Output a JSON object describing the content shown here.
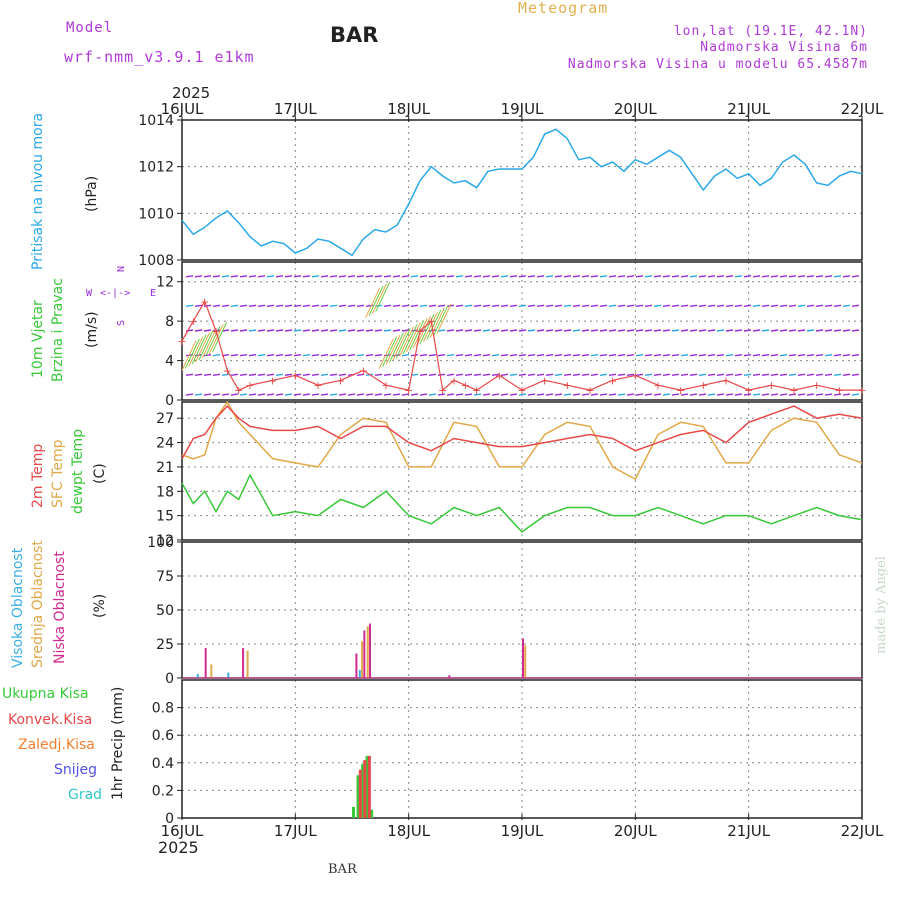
{
  "header": {
    "model_label": "Model",
    "model_name": "wrf-nmm_v3.9.1 e1km",
    "station": "BAR",
    "title": "Meteogram",
    "lonlat": "lon,lat (19.1E, 42.1N)",
    "elevation": "Nadmorska Visina 6m",
    "model_elevation": "Nadmorska Visina u modelu 65.4587m",
    "year": "2025"
  },
  "footer": {
    "station": "BAR",
    "credit": "made by Angel"
  },
  "colors": {
    "pressure": "#2aa8e8",
    "temp2m": "#e84848",
    "sfc": "#e0a848",
    "dewpt": "#38c838",
    "high_cloud": "#3ab0e8",
    "mid_cloud": "#e0a848",
    "low_cloud": "#d02a90",
    "rain_total": "#38c838",
    "rain_conv": "#e84848",
    "freezing": "#f08030",
    "snow": "#5050e0",
    "hail": "#30c8c8",
    "wind_purple": "#9a2ad8"
  },
  "chart_data": [
    {
      "type": "line",
      "name": "pressure",
      "ylabel": "(hPa)",
      "side_label": "Pritisak na nivou mora",
      "x_ticks": [
        "16JUL",
        "17JUL",
        "18JUL",
        "19JUL",
        "20JUL",
        "21JUL",
        "22JUL"
      ],
      "ylim": [
        1008,
        1014
      ],
      "y_ticks": [
        1008,
        1010,
        1012,
        1014
      ],
      "grid": true,
      "series": [
        {
          "x": [
            0,
            0.1,
            0.2,
            0.3,
            0.4,
            0.5,
            0.6,
            0.7,
            0.8,
            0.9,
            1.0,
            1.1,
            1.2,
            1.3,
            1.4,
            1.5,
            1.6,
            1.7,
            1.8,
            1.9,
            2.0,
            2.1,
            2.2,
            2.3,
            2.4,
            2.5,
            2.6,
            2.7,
            2.8,
            2.9,
            3.0,
            3.1,
            3.2,
            3.3,
            3.4,
            3.5,
            3.6,
            3.7,
            3.8,
            3.9,
            4.0,
            4.1,
            4.2,
            4.3,
            4.4,
            4.5,
            4.6,
            4.7,
            4.8,
            4.9,
            5.0,
            5.1,
            5.2,
            5.3,
            5.4,
            5.5,
            5.6,
            5.7,
            5.8,
            5.9,
            6.0
          ],
          "values": [
            1009.7,
            1009.1,
            1009.4,
            1009.8,
            1010.1,
            1009.6,
            1009.0,
            1008.6,
            1008.8,
            1008.7,
            1008.3,
            1008.5,
            1008.9,
            1008.8,
            1008.5,
            1008.2,
            1008.9,
            1009.3,
            1009.2,
            1009.5,
            1010.4,
            1011.4,
            1012.0,
            1011.6,
            1011.3,
            1011.4,
            1011.1,
            1011.8,
            1011.9,
            1011.9,
            1011.9,
            1012.4,
            1013.4,
            1013.6,
            1013.2,
            1012.3,
            1012.4,
            1012.0,
            1012.2,
            1011.8,
            1012.3,
            1012.1,
            1012.4,
            1012.7,
            1012.4,
            1011.7,
            1011.0,
            1011.6,
            1011.9,
            1011.5,
            1011.7,
            1011.2,
            1011.5,
            1012.2,
            1012.5,
            1012.1,
            1011.3,
            1011.2,
            1011.6,
            1011.8,
            1011.7
          ]
        }
      ]
    },
    {
      "type": "line",
      "name": "wind",
      "ylabel": "(m/s)",
      "side_label_1": "10m Vjetar",
      "side_label_2": "Brzina i Pravac",
      "compass": [
        "N",
        "W",
        "E",
        "S"
      ],
      "ylim": [
        0,
        14
      ],
      "y_ticks": [
        0,
        4,
        8,
        12
      ],
      "series": [
        {
          "name": "speed",
          "x": [
            0,
            0.1,
            0.2,
            0.3,
            0.4,
            0.5,
            0.6,
            0.8,
            1.0,
            1.2,
            1.4,
            1.6,
            1.8,
            2.0,
            2.1,
            2.2,
            2.3,
            2.4,
            2.5,
            2.6,
            2.8,
            3.0,
            3.2,
            3.4,
            3.6,
            3.8,
            4.0,
            4.2,
            4.4,
            4.6,
            4.8,
            5.0,
            5.2,
            5.4,
            5.6,
            5.8,
            6.0
          ],
          "values": [
            6,
            8,
            10,
            7,
            3,
            1,
            1.5,
            2,
            2.5,
            1.5,
            2,
            3,
            1.5,
            1,
            7,
            8,
            1,
            2,
            1.5,
            1,
            2.5,
            1,
            2,
            1.5,
            1,
            2,
            2.5,
            1.5,
            1,
            1.5,
            2,
            1,
            1.5,
            1,
            1.5,
            1,
            1
          ]
        }
      ]
    },
    {
      "type": "line",
      "name": "temperature",
      "ylabel": "(C)",
      "side_label_1": "2m Temp",
      "side_label_2": "SFC Temp",
      "side_label_3": "dewpt Temp",
      "ylim": [
        12,
        29
      ],
      "y_ticks": [
        12,
        15,
        18,
        21,
        24,
        27
      ],
      "grid": true,
      "series": [
        {
          "name": "2m Temp",
          "x": [
            0,
            0.1,
            0.2,
            0.3,
            0.4,
            0.5,
            0.6,
            0.8,
            1.0,
            1.2,
            1.4,
            1.6,
            1.8,
            2.0,
            2.2,
            2.4,
            2.6,
            2.8,
            3.0,
            3.2,
            3.4,
            3.6,
            3.8,
            4.0,
            4.2,
            4.4,
            4.6,
            4.8,
            5.0,
            5.2,
            5.4,
            5.6,
            5.8,
            6.0
          ],
          "values": [
            22,
            24.5,
            25,
            27,
            28.5,
            27,
            26,
            25.5,
            25.5,
            26,
            24.5,
            26,
            26,
            24,
            23,
            24.5,
            24,
            23.5,
            23.5,
            24,
            24.5,
            25,
            24.5,
            23,
            24,
            25,
            25.5,
            24,
            26.5,
            27.5,
            28.5,
            27,
            27.5,
            27
          ]
        },
        {
          "name": "SFC Temp",
          "x": [
            0,
            0.1,
            0.2,
            0.3,
            0.4,
            0.5,
            0.6,
            0.8,
            1.0,
            1.2,
            1.4,
            1.6,
            1.8,
            2.0,
            2.2,
            2.4,
            2.6,
            2.8,
            3.0,
            3.2,
            3.4,
            3.6,
            3.8,
            4.0,
            4.2,
            4.4,
            4.6,
            4.8,
            5.0,
            5.2,
            5.4,
            5.6,
            5.8,
            6.0
          ],
          "values": [
            22.5,
            22,
            22.5,
            27,
            29,
            26.5,
            25,
            22,
            21.5,
            21,
            25,
            27,
            26.5,
            21,
            21,
            26.5,
            26,
            21,
            21,
            25,
            26.5,
            26,
            21,
            19.5,
            25,
            26.5,
            26,
            21.5,
            21.5,
            25.5,
            27,
            26.5,
            22.5,
            21.5
          ]
        },
        {
          "name": "dewpt Temp",
          "x": [
            0,
            0.1,
            0.2,
            0.3,
            0.4,
            0.5,
            0.6,
            0.8,
            1.0,
            1.2,
            1.4,
            1.6,
            1.8,
            2.0,
            2.2,
            2.4,
            2.6,
            2.8,
            3.0,
            3.2,
            3.4,
            3.6,
            3.8,
            4.0,
            4.2,
            4.4,
            4.6,
            4.8,
            5.0,
            5.2,
            5.4,
            5.6,
            5.8,
            6.0
          ],
          "values": [
            19,
            16.5,
            18,
            15.5,
            18,
            17,
            20,
            15,
            15.5,
            15,
            17,
            16,
            18,
            15,
            14,
            16,
            15,
            16,
            13,
            15,
            16,
            16,
            15,
            15,
            16,
            15,
            14,
            15,
            15,
            14,
            15,
            16,
            15,
            14.5
          ]
        }
      ]
    },
    {
      "type": "bar",
      "name": "cloud",
      "ylabel": "(%)",
      "side_label_1": "Visoka Oblacnost",
      "side_label_2": "Srednja Oblacnost",
      "side_label_3": "Niska Oblacnost",
      "ylim": [
        0,
        100
      ],
      "y_ticks": [
        0,
        25,
        50,
        75,
        100
      ],
      "grid": true,
      "series": [
        {
          "name": "Niska Oblacnost",
          "x": [
            0.2,
            0.53,
            1.53,
            1.6,
            1.65,
            2.35,
            3.0
          ],
          "values": [
            22,
            22,
            18,
            35,
            40,
            2,
            29
          ]
        },
        {
          "name": "Srednja Oblacnost",
          "x": [
            0.25,
            0.57,
            1.58,
            1.63,
            3.02
          ],
          "values": [
            10,
            20,
            27,
            38,
            24
          ]
        },
        {
          "name": "Visoka Oblacnost",
          "x": [
            0.13,
            0.4,
            1.56
          ],
          "values": [
            3,
            4,
            6
          ]
        }
      ]
    },
    {
      "type": "bar",
      "name": "precip",
      "ylabel": "1hr Precip (mm)",
      "legend": [
        "Ukupna Kisa",
        "Konvek.Kisa",
        "Zaledj.Kisa",
        "Snijeg",
        "Grad"
      ],
      "ylim": [
        0,
        1
      ],
      "y_ticks": [
        0,
        0.2,
        0.4,
        0.6,
        0.8
      ],
      "grid": true,
      "series": [
        {
          "name": "Ukupna Kisa",
          "x": [
            1.5,
            1.54,
            1.58,
            1.62,
            1.66
          ],
          "values": [
            0.08,
            0.31,
            0.39,
            0.45,
            0.06
          ]
        },
        {
          "name": "Konvek.Kisa",
          "x": [
            1.56,
            1.6,
            1.64
          ],
          "values": [
            0.35,
            0.42,
            0.45
          ]
        }
      ]
    }
  ]
}
